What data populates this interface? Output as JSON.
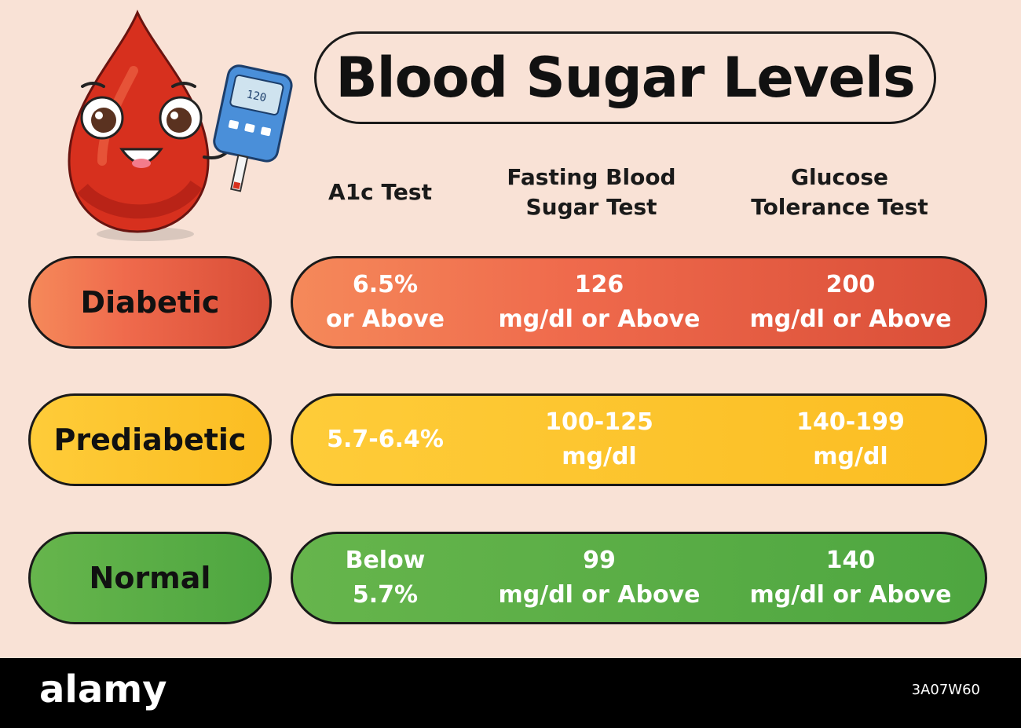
{
  "title": "Blood Sugar Levels",
  "columns": [
    "A1c Test",
    "Fasting Blood\nSugar Test",
    "Glucose\nTolerance Test"
  ],
  "rows": [
    {
      "label": "Diabetic",
      "cells": [
        "6.5%\nor Above",
        "126\nmg/dl or Above",
        "200\nmg/dl or Above"
      ]
    },
    {
      "label": "Prediabetic",
      "cells": [
        "5.7-6.4%",
        "100-125\nmg/dl",
        "140-199\nmg/dl"
      ]
    },
    {
      "label": "Normal",
      "cells": [
        "Below\n5.7%",
        "99\nmg/dl or Above",
        "140\nmg/dl or Above"
      ]
    }
  ],
  "meter_reading": "120",
  "footer": {
    "brand": "alamy",
    "image_code": "3A07W60"
  },
  "colors": {
    "diabetic": "#ef6a4c",
    "prediabetic": "#fbbd22",
    "normal": "#5aaf46",
    "background": "#f9e2d6"
  }
}
